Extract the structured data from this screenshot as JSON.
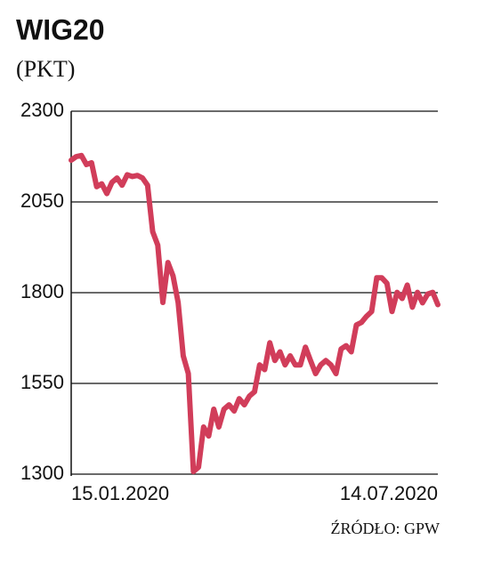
{
  "chart_data": {
    "type": "line",
    "title": "WIG20",
    "subtitle": "(PKT)",
    "source": "ŹRÓDŁO: GPW",
    "categories": [
      "15.01.2020",
      null,
      null,
      null,
      null,
      null,
      null,
      null,
      null,
      null,
      null,
      null,
      null,
      null,
      null,
      null,
      null,
      null,
      null,
      null,
      null,
      null,
      null,
      null,
      null,
      null,
      null,
      null,
      null,
      null,
      null,
      null,
      null,
      null,
      null,
      null,
      null,
      null,
      null,
      null,
      null,
      null,
      null,
      null,
      null,
      null,
      null,
      null,
      null,
      null,
      null,
      null,
      null,
      null,
      null,
      null,
      null,
      null,
      null,
      null,
      null,
      null,
      null,
      null,
      null,
      null,
      null,
      null,
      null,
      null,
      null,
      null,
      "14.07.2020"
    ],
    "values": [
      2165,
      2175,
      2178,
      2153,
      2158,
      2092,
      2100,
      2073,
      2104,
      2116,
      2096,
      2125,
      2120,
      2123,
      2116,
      2096,
      1968,
      1931,
      1773,
      1883,
      1846,
      1773,
      1626,
      1577,
      1307,
      1319,
      1430,
      1405,
      1479,
      1430,
      1479,
      1491,
      1474,
      1508,
      1491,
      1515,
      1527,
      1601,
      1588,
      1662,
      1613,
      1637,
      1601,
      1626,
      1601,
      1601,
      1650,
      1613,
      1577,
      1601,
      1613,
      1601,
      1577,
      1645,
      1654,
      1637,
      1711,
      1718,
      1735,
      1748,
      1841,
      1841,
      1826,
      1748,
      1801,
      1784,
      1821,
      1760,
      1801,
      1772,
      1796,
      1801,
      1767
    ],
    "color": "#d13d5a",
    "ylim": [
      1300,
      2300
    ],
    "yticks": [
      1300,
      1550,
      1800,
      2050,
      2300
    ],
    "grid": true
  }
}
